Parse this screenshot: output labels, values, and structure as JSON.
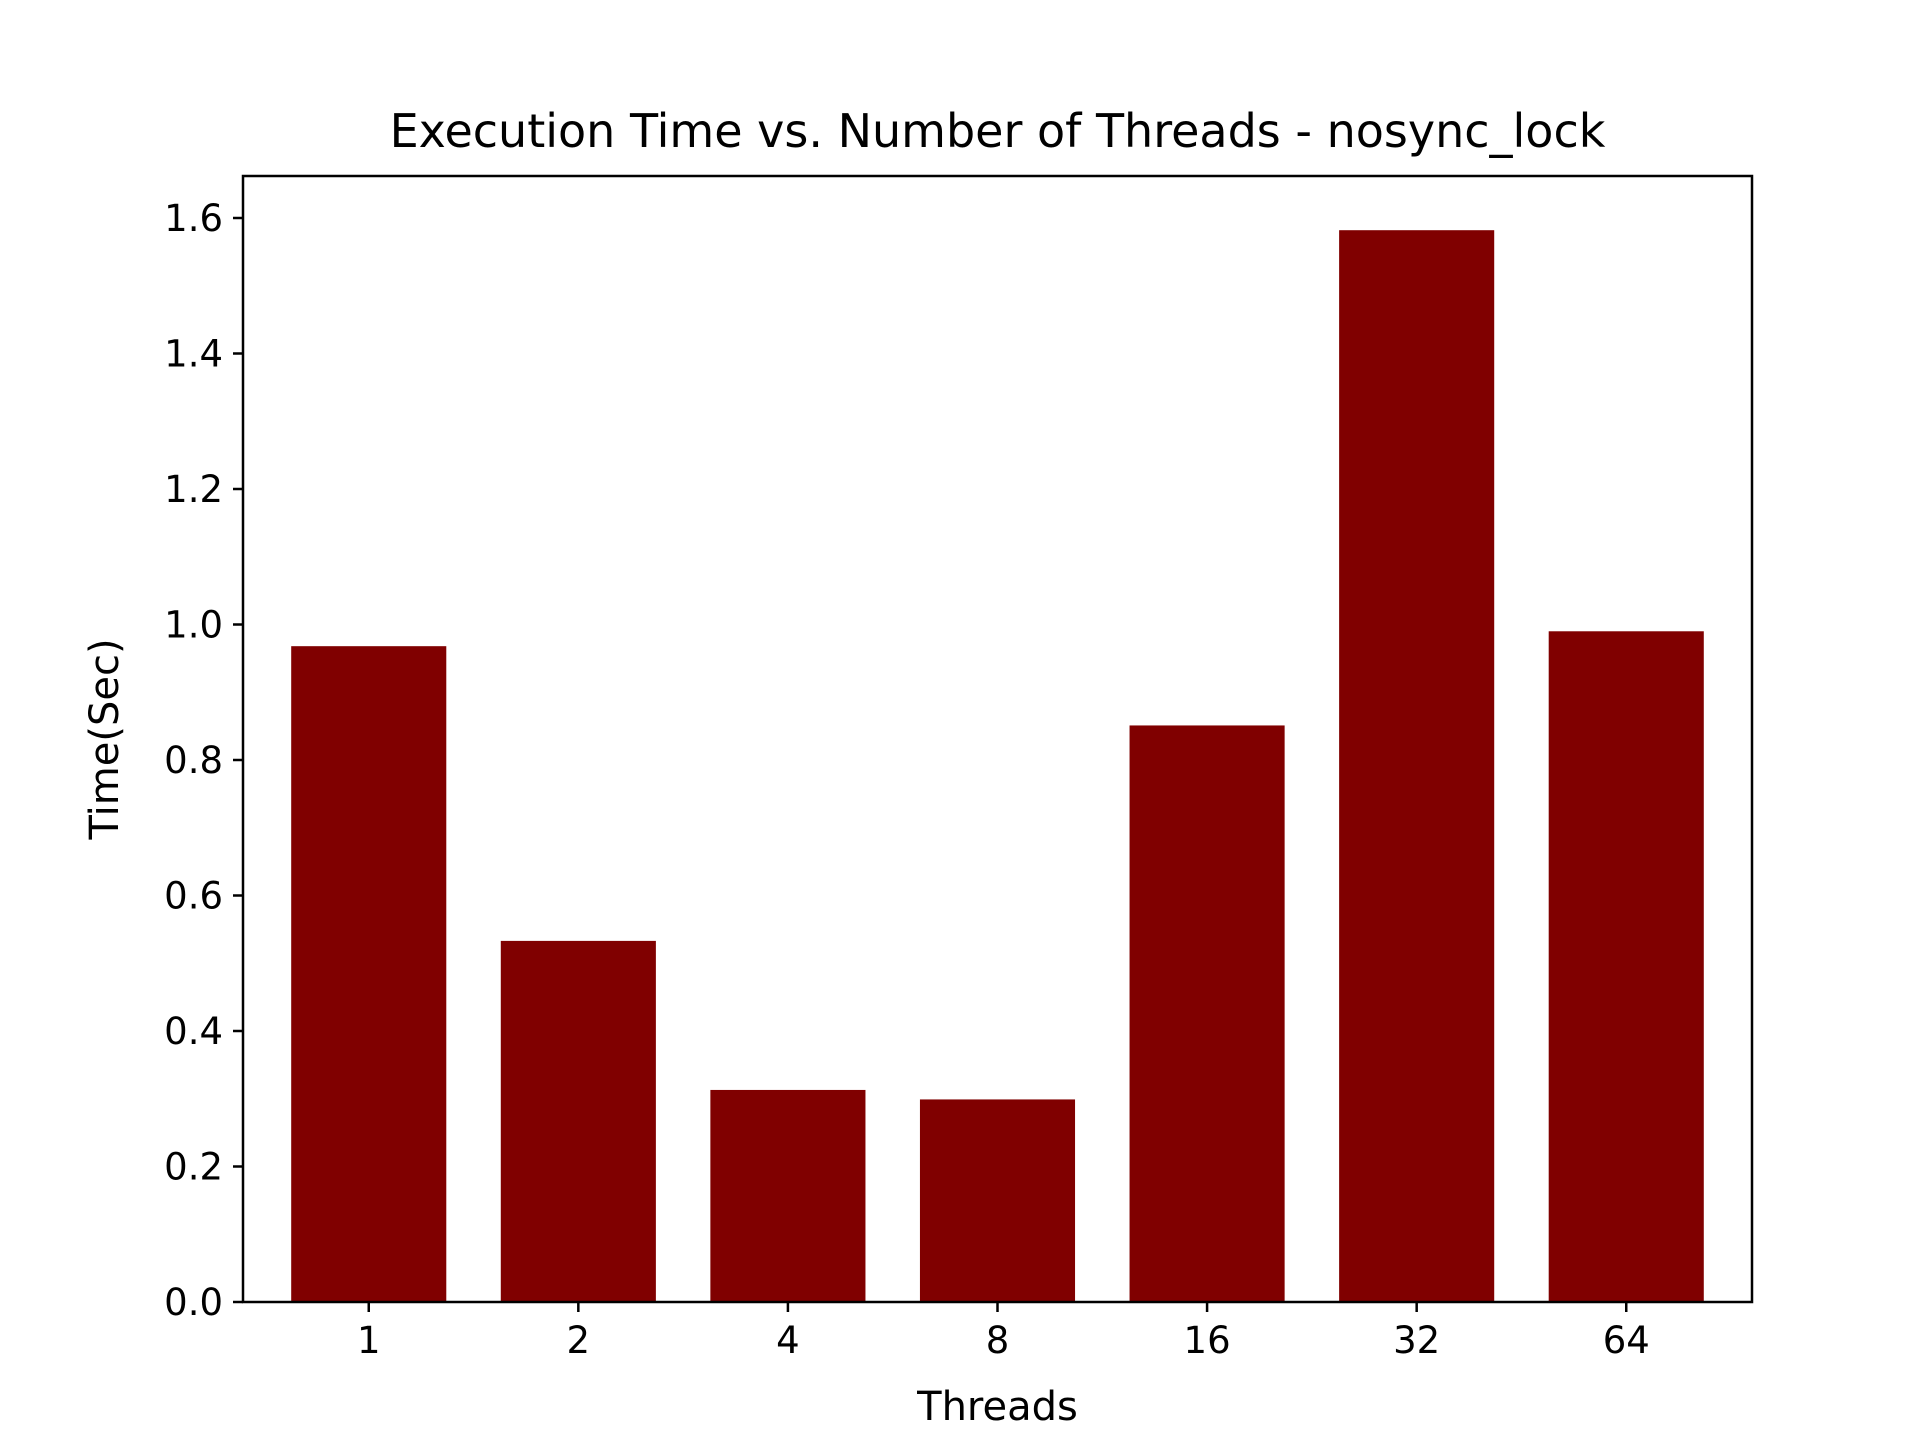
{
  "chart_data": {
    "type": "bar",
    "title": "Execution Time vs. Number of Threads - nosync_lock",
    "xlabel": "Threads",
    "ylabel": "Time(Sec)",
    "categories": [
      "1",
      "2",
      "4",
      "8",
      "16",
      "32",
      "64"
    ],
    "values": [
      0.968,
      0.533,
      0.313,
      0.299,
      0.851,
      1.582,
      0.99
    ],
    "ylim": [
      0,
      1.662
    ],
    "yticks": [
      0.0,
      0.2,
      0.4,
      0.6,
      0.8,
      1.0,
      1.2,
      1.4,
      1.6
    ],
    "ytick_labels": [
      "0.0",
      "0.2",
      "0.4",
      "0.6",
      "0.8",
      "1.0",
      "1.2",
      "1.4",
      "1.6"
    ],
    "bar_color": "#800000",
    "grid": false,
    "legend": "none"
  }
}
